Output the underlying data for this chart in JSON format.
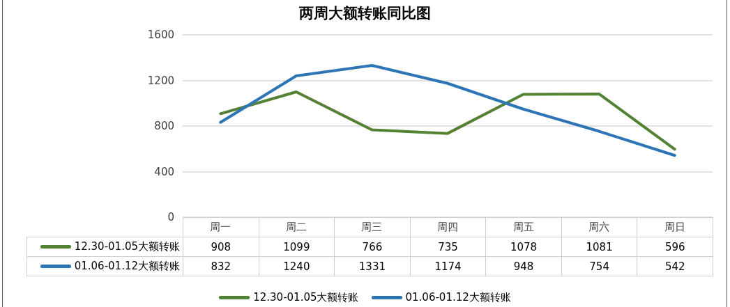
{
  "chart_data": {
    "type": "line",
    "title": "两周大额转账同比图",
    "categories": [
      "周一",
      "周二",
      "周三",
      "周四",
      "周五",
      "周六",
      "周日"
    ],
    "series": [
      {
        "name": "12.30-01.05大额转账",
        "color": "#548235",
        "values": [
          908,
          1099,
          766,
          735,
          1078,
          1081,
          596
        ]
      },
      {
        "name": "01.06-01.12大额转账",
        "color": "#2e75b6",
        "values": [
          832,
          1240,
          1331,
          1174,
          948,
          754,
          542
        ]
      }
    ],
    "ylim": [
      0,
      1600
    ],
    "yticks": [
      0,
      400,
      800,
      1200,
      1600
    ],
    "grid": "y",
    "legend": "bottom",
    "data_labels": true,
    "marker": "none",
    "line_style": "solid"
  }
}
